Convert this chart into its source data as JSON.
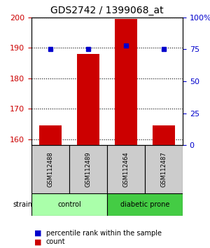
{
  "title": "GDS2742 / 1399068_at",
  "samples": [
    "GSM112488",
    "GSM112489",
    "GSM112464",
    "GSM112487"
  ],
  "counts": [
    164.5,
    188.0,
    199.5,
    164.5
  ],
  "percentiles": [
    75,
    75,
    78,
    75
  ],
  "groups": [
    "control",
    "control",
    "diabetic prone",
    "diabetic prone"
  ],
  "ylim_left": [
    158,
    200
  ],
  "ylim_right": [
    0,
    100
  ],
  "yticks_left": [
    160,
    170,
    180,
    190,
    200
  ],
  "yticks_right": [
    0,
    25,
    50,
    75,
    100
  ],
  "ytick_labels_right": [
    "0",
    "25",
    "50",
    "75",
    "100%"
  ],
  "bar_color": "#cc0000",
  "dot_color": "#0000cc",
  "bar_width": 0.6,
  "group_colors": {
    "control": "#aaffaa",
    "diabetic prone": "#44cc44"
  },
  "sample_box_color": "#cccccc",
  "legend_count_color": "#cc0000",
  "legend_percentile_color": "#0000cc"
}
